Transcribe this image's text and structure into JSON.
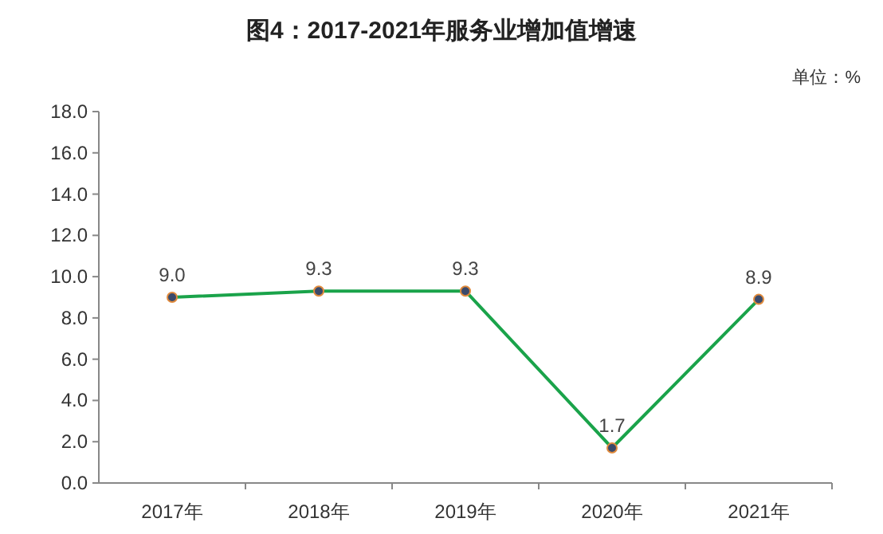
{
  "chart_data": {
    "type": "line",
    "title": "图4：2017-2021年服务业增加值增速",
    "annotations": [
      "单位：%"
    ],
    "categories": [
      "2017年",
      "2018年",
      "2019年",
      "2020年",
      "2021年"
    ],
    "series": [
      {
        "color": "#1aa34a",
        "values": [
          9.0,
          9.3,
          9.3,
          1.7,
          8.9
        ],
        "value_labels": [
          "9.0",
          "9.3",
          "9.3",
          "1.7",
          "8.9"
        ]
      }
    ],
    "ylim": [
      0,
      18
    ],
    "yticks": [
      {
        "value": 0,
        "label": "0.0"
      },
      {
        "value": 2,
        "label": "2.0"
      },
      {
        "value": 4,
        "label": "4.0"
      },
      {
        "value": 6,
        "label": "6.0"
      },
      {
        "value": 8,
        "label": "8.0"
      },
      {
        "value": 10,
        "label": "10.0"
      },
      {
        "value": 12,
        "label": "12.0"
      },
      {
        "value": 14,
        "label": "14.0"
      },
      {
        "value": 16,
        "label": "16.0"
      },
      {
        "value": 18,
        "label": "18.0"
      }
    ],
    "grid": false,
    "marker": "circle",
    "line_style": "solid"
  }
}
